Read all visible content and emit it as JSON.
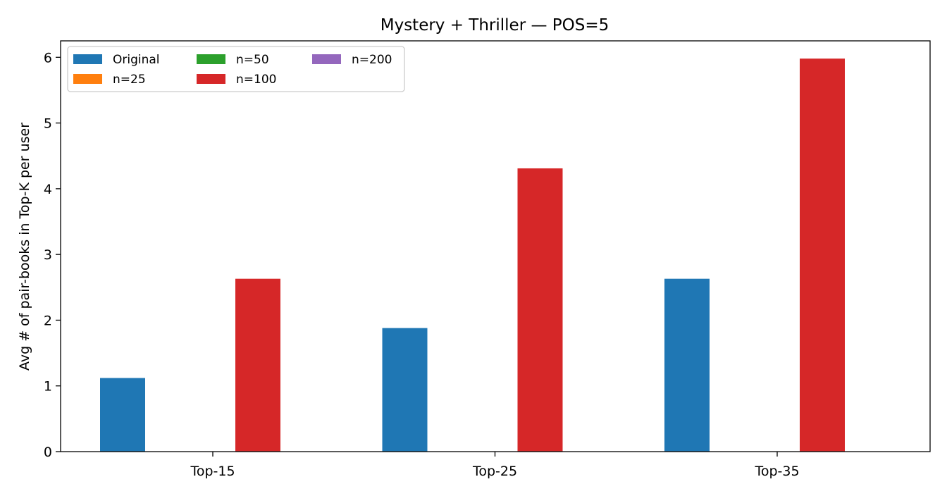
{
  "chart_data": {
    "type": "bar",
    "title": "Mystery + Thriller — POS=5",
    "xlabel": "",
    "ylabel": "Avg # of pair-books in Top-K per user",
    "categories": [
      "Top-15",
      "Top-25",
      "Top-35"
    ],
    "series": [
      {
        "name": "Original",
        "color": "#1f77b4",
        "values": [
          1.12,
          1.88,
          2.63
        ]
      },
      {
        "name": "n=25",
        "color": "#ff7f0e",
        "values": [
          0,
          0,
          0
        ]
      },
      {
        "name": "n=50",
        "color": "#2ca02c",
        "values": [
          0,
          0,
          0
        ]
      },
      {
        "name": "n=100",
        "color": "#d62728",
        "values": [
          2.63,
          4.31,
          5.98
        ]
      },
      {
        "name": "n=200",
        "color": "#9467bd",
        "values": [
          0,
          0,
          0
        ]
      }
    ],
    "ylim": [
      0,
      6.25
    ],
    "yticks": [
      0,
      1,
      2,
      3,
      4,
      5,
      6
    ],
    "grid": false,
    "legend": {
      "position": "top-left",
      "columns": 3
    }
  }
}
